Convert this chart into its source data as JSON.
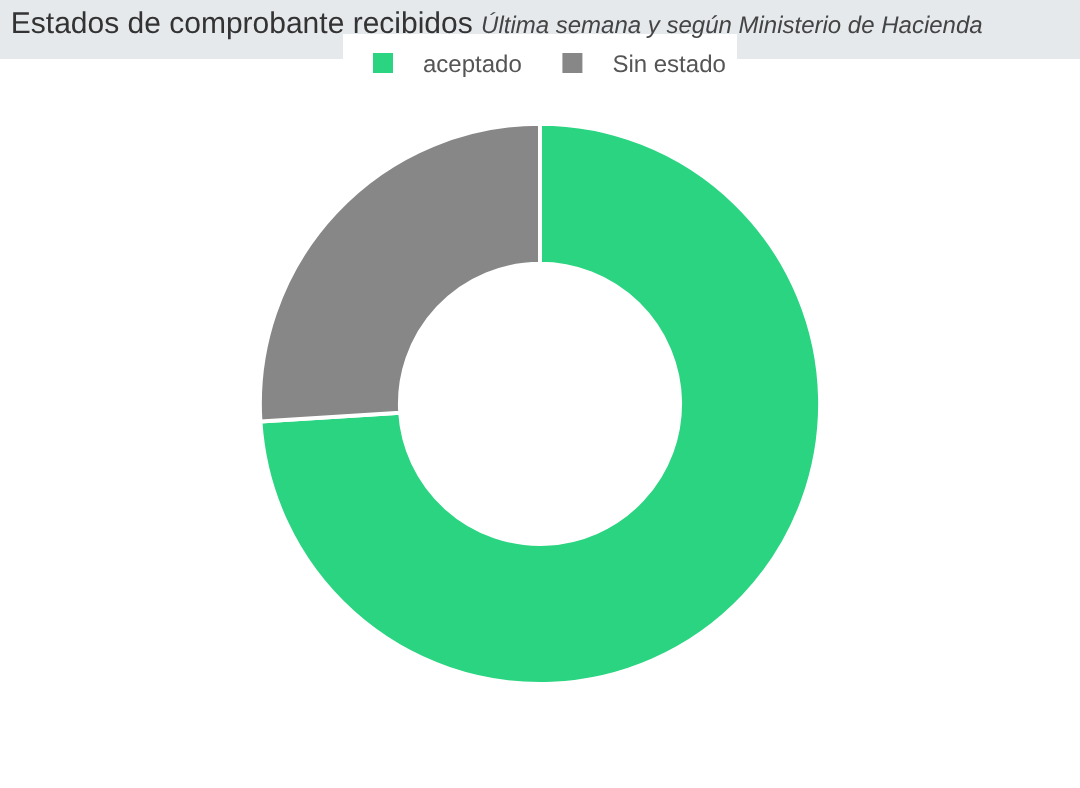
{
  "chart_data": {
    "type": "donut",
    "title": "Estados de comprobante recibidos",
    "subtitle": "Última semana y según Ministerio de Hacienda",
    "categories": [
      "aceptado",
      "Sin estado"
    ],
    "values": [
      74,
      26
    ],
    "colors": [
      "#2ad481",
      "#878787"
    ],
    "legend": "top"
  }
}
